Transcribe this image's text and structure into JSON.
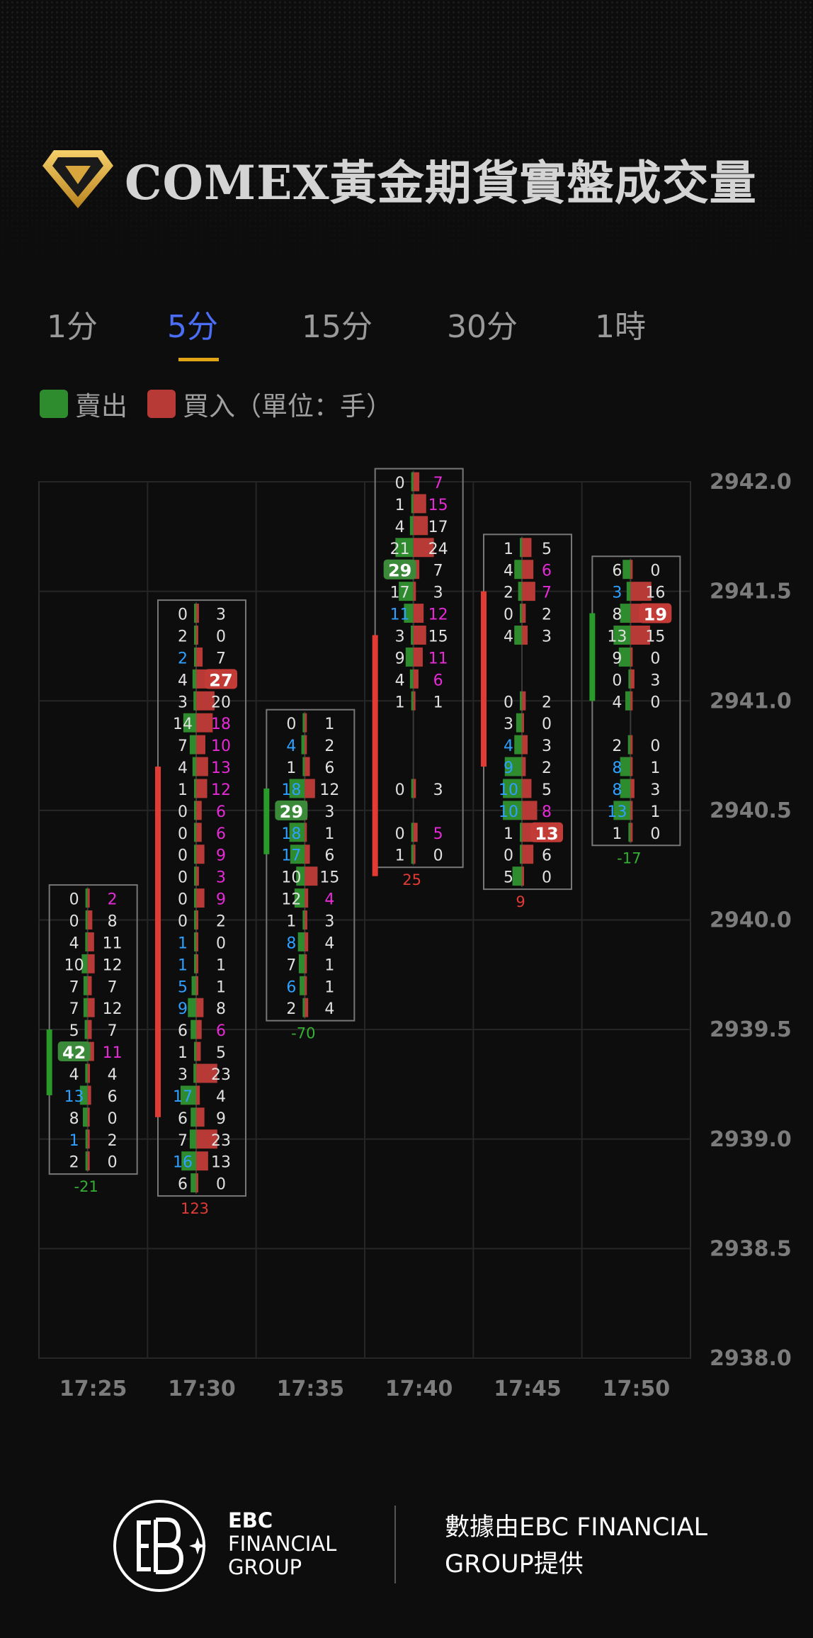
{
  "header": {
    "title": "COMEX黃金期貨實盤成交量"
  },
  "tabs": [
    {
      "label": "1分"
    },
    {
      "label": "5分"
    },
    {
      "label": "15分"
    },
    {
      "label": "30分"
    },
    {
      "label": "1時"
    }
  ],
  "active_tab": 1,
  "legend": {
    "sell": "賣出",
    "buy": "買入（單位：手）"
  },
  "colors": {
    "sell": "#2e8b2e",
    "buy": "#b83a36",
    "accent": "#4a6ef5",
    "tab_underline": "#e0a416",
    "cyan": "#2ea0ff",
    "magenta": "#e62ad6",
    "delta_pos": "#e23b34",
    "delta_neg": "#35b035"
  },
  "chart_data": {
    "type": "footprint",
    "ylim": [
      2938.0,
      2942.0
    ],
    "y_ticks": [
      "2938.0",
      "2938.5",
      "2939.0",
      "2939.5",
      "2940.0",
      "2940.5",
      "2941.0",
      "2941.5",
      "2942.0"
    ],
    "x_labels": [
      "17:25",
      "17:30",
      "17:35",
      "17:40",
      "17:45",
      "17:50"
    ],
    "grid": true,
    "candles": [
      {
        "time": "17:25",
        "top": 2940.1,
        "delta": "-21",
        "body": [
          2939.5,
          2939.2
        ],
        "rows": [
          [
            0,
            2,
            0,
            2
          ],
          [
            0,
            8,
            0,
            0
          ],
          [
            4,
            11,
            0,
            0
          ],
          [
            10,
            12,
            0,
            0
          ],
          [
            7,
            7,
            0,
            0
          ],
          [
            7,
            12,
            0,
            0
          ],
          [
            5,
            7,
            0,
            0
          ],
          [
            42,
            11,
            3,
            2
          ],
          [
            4,
            4,
            0,
            0
          ],
          [
            13,
            6,
            1,
            0
          ],
          [
            8,
            0,
            0,
            0
          ],
          [
            1,
            2,
            1,
            0
          ],
          [
            2,
            0,
            0,
            0
          ]
        ]
      },
      {
        "time": "17:30",
        "top": 2941.4,
        "delta": "123",
        "body": [
          2940.7,
          2939.1
        ],
        "rows": [
          [
            0,
            3,
            0,
            0
          ],
          [
            2,
            0,
            0,
            0
          ],
          [
            2,
            7,
            1,
            0
          ],
          [
            4,
            27,
            0,
            3
          ],
          [
            3,
            20,
            0,
            0
          ],
          [
            14,
            18,
            0,
            2
          ],
          [
            7,
            10,
            0,
            2
          ],
          [
            4,
            13,
            0,
            2
          ],
          [
            1,
            12,
            0,
            2
          ],
          [
            0,
            6,
            0,
            2
          ],
          [
            0,
            6,
            0,
            2
          ],
          [
            0,
            9,
            0,
            2
          ],
          [
            0,
            3,
            0,
            2
          ],
          [
            0,
            9,
            0,
            2
          ],
          [
            0,
            2,
            0,
            0
          ],
          [
            1,
            0,
            1,
            0
          ],
          [
            1,
            1,
            1,
            0
          ],
          [
            5,
            1,
            1,
            0
          ],
          [
            9,
            8,
            1,
            0
          ],
          [
            6,
            6,
            0,
            2
          ],
          [
            1,
            5,
            0,
            0
          ],
          [
            3,
            23,
            0,
            0
          ],
          [
            17,
            4,
            1,
            0
          ],
          [
            6,
            9,
            0,
            0
          ],
          [
            7,
            23,
            0,
            0
          ],
          [
            16,
            13,
            1,
            0
          ],
          [
            6,
            0,
            0,
            0
          ]
        ]
      },
      {
        "time": "17:35",
        "top": 2940.9,
        "delta": "-70",
        "body": [
          2940.6,
          2940.3
        ],
        "rows": [
          [
            0,
            1,
            0,
            0
          ],
          [
            4,
            2,
            1,
            0
          ],
          [
            1,
            6,
            0,
            0
          ],
          [
            18,
            12,
            1,
            0
          ],
          [
            29,
            3,
            3,
            0
          ],
          [
            18,
            1,
            1,
            0
          ],
          [
            17,
            6,
            1,
            0
          ],
          [
            10,
            15,
            0,
            0
          ],
          [
            12,
            4,
            0,
            2
          ],
          [
            1,
            3,
            0,
            0
          ],
          [
            8,
            4,
            1,
            0
          ],
          [
            7,
            1,
            0,
            0
          ],
          [
            6,
            1,
            1,
            0
          ],
          [
            2,
            4,
            0,
            0
          ]
        ]
      },
      {
        "time": "17:40",
        "top": 2942.0,
        "delta": "25",
        "body": [
          2941.3,
          2940.2
        ],
        "rows": [
          [
            0,
            7,
            0,
            2
          ],
          [
            1,
            15,
            0,
            2
          ],
          [
            4,
            17,
            0,
            0
          ],
          [
            21,
            24,
            0,
            0
          ],
          [
            29,
            7,
            3,
            0
          ],
          [
            17,
            3,
            0,
            0
          ],
          [
            11,
            12,
            1,
            2
          ],
          [
            3,
            15,
            0,
            0
          ],
          [
            9,
            11,
            0,
            2
          ],
          [
            4,
            6,
            0,
            2
          ],
          [
            1,
            1,
            0,
            0
          ],
          null,
          null,
          null,
          [
            0,
            3,
            0,
            0
          ],
          null,
          [
            0,
            5,
            0,
            2
          ],
          [
            1,
            0,
            0,
            0
          ]
        ]
      },
      {
        "time": "17:45",
        "top": 2941.7,
        "delta": "9",
        "body": [
          2941.5,
          2940.7
        ],
        "rows": [
          [
            1,
            5,
            0,
            0
          ],
          [
            4,
            6,
            0,
            2
          ],
          [
            2,
            7,
            0,
            2
          ],
          [
            0,
            2,
            0,
            0
          ],
          [
            4,
            3,
            0,
            0
          ],
          null,
          null,
          [
            0,
            2,
            0,
            0
          ],
          [
            3,
            0,
            0,
            0
          ],
          [
            4,
            3,
            1,
            0
          ],
          [
            9,
            2,
            1,
            0
          ],
          [
            10,
            5,
            1,
            0
          ],
          [
            10,
            8,
            1,
            2
          ],
          [
            1,
            13,
            0,
            3
          ],
          [
            0,
            6,
            0,
            0
          ],
          [
            5,
            0,
            0,
            0
          ]
        ]
      },
      {
        "time": "17:50",
        "top": 2941.6,
        "delta": "-17",
        "body": [
          2941.4,
          2941.0
        ],
        "rows": [
          [
            6,
            0,
            0,
            0
          ],
          [
            3,
            16,
            1,
            0
          ],
          [
            8,
            19,
            0,
            3
          ],
          [
            13,
            15,
            0,
            0
          ],
          [
            9,
            0,
            0,
            0
          ],
          [
            0,
            3,
            0,
            0
          ],
          [
            4,
            0,
            0,
            0
          ],
          null,
          [
            2,
            0,
            0,
            0
          ],
          [
            8,
            1,
            1,
            0
          ],
          [
            8,
            3,
            1,
            0
          ],
          [
            13,
            1,
            1,
            0
          ],
          [
            1,
            0,
            0,
            0
          ]
        ]
      }
    ]
  },
  "footer": {
    "brand1": "EBC",
    "brand2": "FINANCIAL",
    "brand3": "GROUP",
    "provider": "數據由EBC FINANCIAL GROUP提供"
  }
}
